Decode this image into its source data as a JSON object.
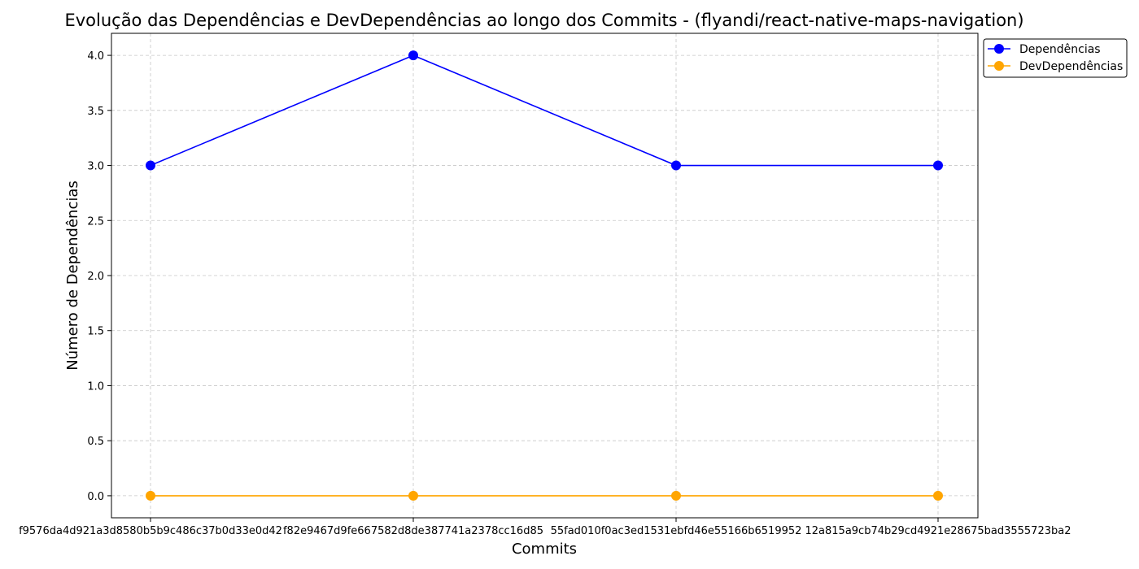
{
  "chart_data": {
    "type": "line",
    "title": "Evolução das Dependências e DevDependências ao longo dos Commits - (flyandi/react-native-maps-navigation)",
    "xlabel": "Commits",
    "ylabel": "Número de Dependências",
    "categories": [
      "f9576da4d921a3d8580b5b9c486c37b0d33e0d42",
      "f82e9467d9fe667582d8de387741a2378cc16d85",
      "55fad010f0ac3ed1531ebfd46e55166b6519952",
      "12a815a9cb74b29cd4921e28675bad3555723ba2"
    ],
    "series": [
      {
        "name": "Dependências",
        "values": [
          3,
          4,
          3,
          3
        ],
        "color": "#0000ff"
      },
      {
        "name": "DevDependências",
        "values": [
          0,
          0,
          0,
          0
        ],
        "color": "#ffa500"
      }
    ],
    "ylim": [
      -0.2,
      4.2
    ],
    "yticks": [
      "0.0",
      "0.5",
      "1.0",
      "1.5",
      "2.0",
      "2.5",
      "3.0",
      "3.5",
      "4.0"
    ],
    "grid": true,
    "legend": "upper right, outside plot"
  }
}
